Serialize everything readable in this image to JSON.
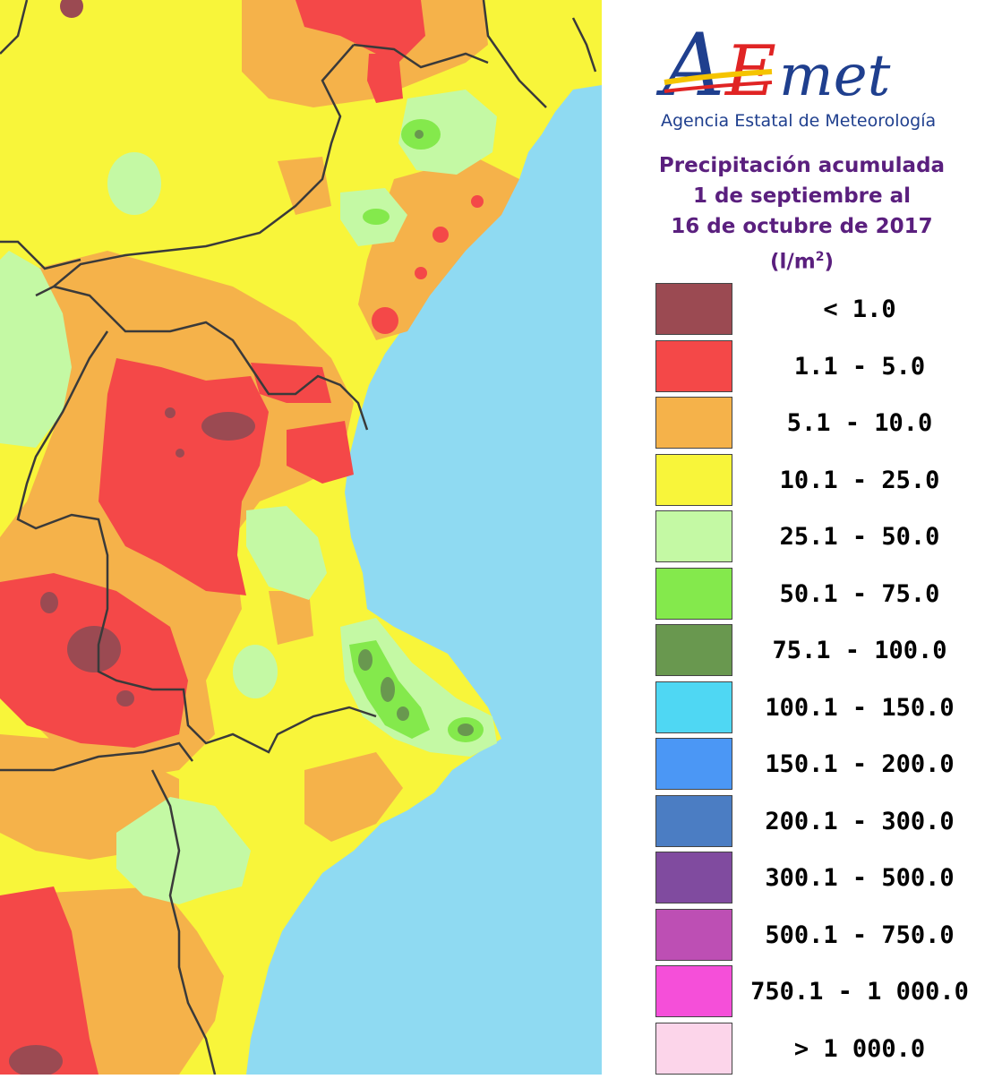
{
  "logo": {
    "brand": "AEmet",
    "subtitle": "Agencia Estatal de Meteorología"
  },
  "title": {
    "line1": "Precipitación acumulada",
    "line2": "1 de septiembre al",
    "line3": "16 de octubre de 2017",
    "unit_base": "(l/m",
    "unit_sup": "2",
    "unit_end": ")"
  },
  "legend": [
    {
      "label": "< 1.0",
      "color": "#9b4a52"
    },
    {
      "label": "1.1 - 5.0",
      "color": "#f44848"
    },
    {
      "label": "5.1 - 10.0",
      "color": "#f5b24a"
    },
    {
      "label": "10.1 - 25.0",
      "color": "#f8f53a"
    },
    {
      "label": "25.1 - 50.0",
      "color": "#c4f9a4"
    },
    {
      "label": "50.1 - 75.0",
      "color": "#84e94c"
    },
    {
      "label": "75.1 - 100.0",
      "color": "#69984f"
    },
    {
      "label": "100.1 - 150.0",
      "color": "#4fd7f3"
    },
    {
      "label": "150.1 - 200.0",
      "color": "#4b97f5"
    },
    {
      "label": "200.1 - 300.0",
      "color": "#4b7dc3"
    },
    {
      "label": "300.1 - 500.0",
      "color": "#804b9f"
    },
    {
      "label": "500.1 - 750.0",
      "color": "#bd4fb4"
    },
    {
      "label": "750.1 - 1 000.0",
      "color": "#f54fd9"
    },
    {
      "label": "> 1 000.0",
      "color": "#fcd5ea"
    }
  ],
  "map": {
    "sea_color": "#8fdaf2",
    "land_base_color": "#f8f53a",
    "border_color": "#3a3a3a"
  }
}
